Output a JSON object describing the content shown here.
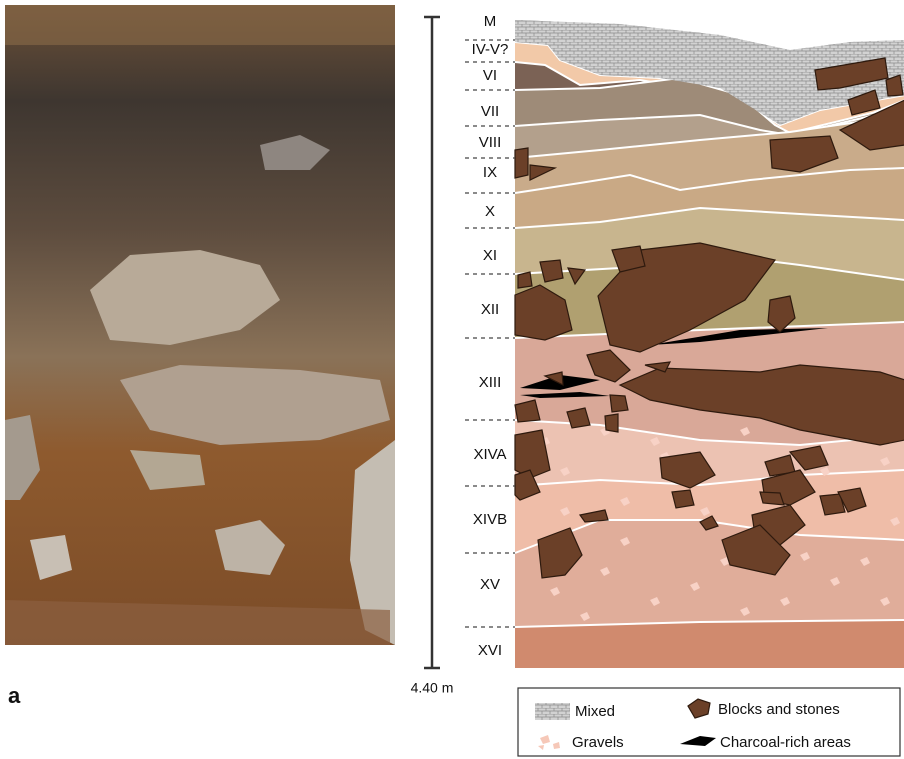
{
  "figure": {
    "panel_label": "a",
    "scale_label": "4.40 m",
    "layers": [
      "M",
      "IV-V?",
      "VI",
      "VII",
      "VIII",
      "IX",
      "X",
      "XI",
      "XII",
      "XIII",
      "XIVA",
      "XIVB",
      "XV",
      "XVI"
    ],
    "legend": {
      "mixed": "Mixed",
      "blocks": "Blocks and stones",
      "gravels": "Gravels",
      "charcoal": "Charcoal-rich areas"
    }
  }
}
